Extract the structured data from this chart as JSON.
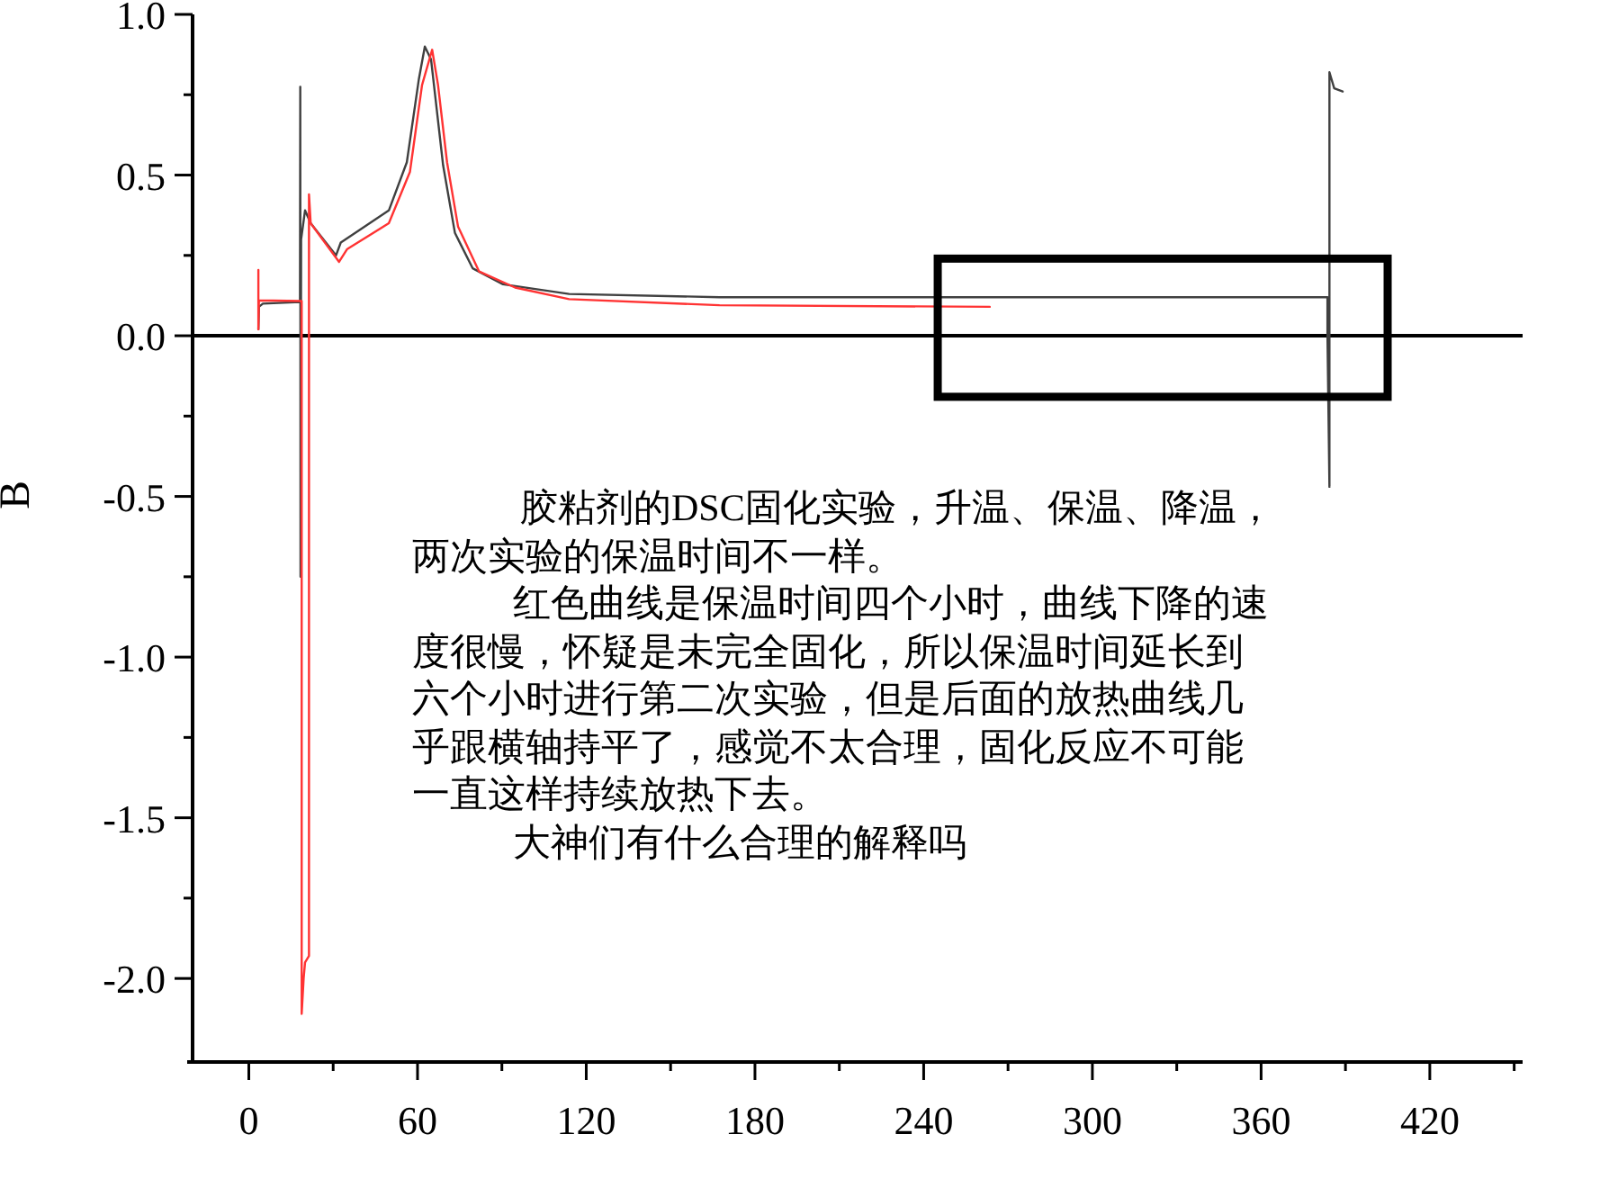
{
  "chart_data": {
    "type": "line",
    "ylabel": "B",
    "xlim": [
      -20,
      453
    ],
    "xticks": [
      0,
      {
        "value": 30,
        "label": null
      },
      60,
      {
        "value": 90,
        "label": null
      },
      120,
      {
        "value": 150,
        "label": null
      },
      180,
      {
        "value": 210,
        "label": null
      },
      240,
      {
        "value": 270,
        "label": null
      },
      300,
      {
        "value": 330,
        "label": null
      },
      360,
      {
        "value": 390,
        "label": null
      },
      420,
      {
        "value": 450,
        "label": null
      }
    ],
    "ylim": [
      -2.26,
      1.0
    ],
    "yticks": [
      {
        "value": 1.0,
        "label": "1.0"
      },
      {
        "value": 0.75,
        "label": null
      },
      {
        "value": 0.5,
        "label": "0.5"
      },
      {
        "value": 0.25,
        "label": null
      },
      {
        "value": 0,
        "label": "0.0"
      },
      {
        "value": -0.25,
        "label": null
      },
      {
        "value": -0.5,
        "label": "-0.5"
      },
      {
        "value": -0.75,
        "label": null
      },
      {
        "value": -1.0,
        "label": "-1.0"
      },
      {
        "value": -1.25,
        "label": null
      },
      {
        "value": -1.5,
        "label": "-1.5"
      },
      {
        "value": -1.75,
        "label": null
      },
      {
        "value": -2.0,
        "label": "-2.0"
      }
    ],
    "series": [
      {
        "color": "#404040",
        "x": [
          3.4,
          3.6,
          5,
          18.2,
          18.3,
          18.4,
          18.6,
          20,
          22,
          31,
          32.7,
          49.8,
          56.2,
          60.5,
          62.6,
          64.8,
          69.1,
          73.3,
          79.6,
          90.4,
          113.9,
          167.4,
          383.6,
          383.6,
          384.3,
          384.3,
          386,
          389
        ],
        "values": [
          0.02,
          0.09,
          0.1,
          0.105,
          0.775,
          -0.75,
          0.3,
          0.39,
          0.35,
          0.25,
          0.29,
          0.39,
          0.54,
          0.8,
          0.9,
          0.86,
          0.53,
          0.32,
          0.21,
          0.16,
          0.13,
          0.12,
          0.12,
          0.0,
          -0.47,
          0.82,
          0.77,
          0.76
        ]
      },
      {
        "color": "#ff3333",
        "x": [
          3.4,
          3.4,
          3.6,
          18.8,
          18.8,
          19.5,
          20,
          21.4,
          21.4,
          22,
          32.1,
          35,
          49.8,
          57.3,
          61.6,
          65.2,
          67.3,
          70.5,
          74.4,
          81.9,
          94.7,
          113.9,
          167.4,
          263.5
        ],
        "values": [
          0.205,
          0.02,
          0.11,
          0.108,
          -2.11,
          -2.0,
          -1.95,
          -1.93,
          0.44,
          0.35,
          0.23,
          0.27,
          0.35,
          0.51,
          0.78,
          0.89,
          0.78,
          0.54,
          0.34,
          0.2,
          0.15,
          0.114,
          0.095,
          0.09
        ]
      }
    ],
    "ref_lines": [
      {
        "axis": "y",
        "value": 0,
        "color": "#000000"
      }
    ],
    "annotations": [
      "胶粘剂的DSC固化实验，升温、保温、降温，两次实验的保温时间不一样。",
      "红色曲线是保温时间四个小时，曲线下降的速度很慢，怀疑是未完全固化，所以保温时间延长到六个小时进行第二次实验，但是后面的放热曲线几乎跟横轴持平了，感觉不太合理，固化反应不可能一直这样持续放热下去。",
      "大神们有什么合理的解释吗"
    ],
    "marker": "none",
    "line_style": "solid",
    "grid": false
  }
}
